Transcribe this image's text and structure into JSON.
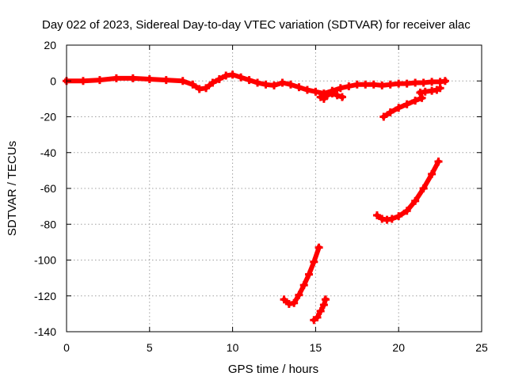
{
  "chart_data": {
    "type": "scatter",
    "title": "Day 022 of 2023, Sidereal Day-to-day VTEC variation (SDTVAR) for receiver alac",
    "xlabel": "GPS time / hours",
    "ylabel": "SDTVAR / TECUs",
    "xlim": [
      0,
      25
    ],
    "ylim": [
      -140,
      20
    ],
    "xticks": [
      0,
      5,
      10,
      15,
      20,
      25
    ],
    "yticks": [
      -140,
      -120,
      -100,
      -80,
      -60,
      -40,
      -20,
      0,
      20
    ],
    "grid": true,
    "marker_color": "#ff0000",
    "segments": [
      {
        "x": [
          0,
          1,
          2,
          3,
          4,
          5,
          6,
          7,
          7.6,
          8.0,
          8.4,
          8.8,
          9.2,
          9.6,
          10.0,
          10.5,
          11.0,
          11.5,
          12.0,
          12.5,
          13.0,
          13.5,
          14.0,
          14.5,
          15.0,
          15.5,
          16.0,
          16.5,
          17.0,
          17.5,
          18.0,
          18.5,
          19.0,
          19.5,
          20.0,
          20.5,
          21.0,
          21.5,
          22.0,
          22.5,
          22.8
        ],
        "y": [
          0,
          0,
          0.5,
          1.5,
          1.5,
          1.0,
          0.5,
          0,
          -2,
          -4.5,
          -4,
          -1,
          1,
          3,
          3.5,
          2,
          0.5,
          -1,
          -2,
          -2.5,
          -1,
          -2,
          -3.5,
          -5,
          -6,
          -7,
          -5.5,
          -4,
          -3,
          -2,
          -2,
          -2,
          -2.5,
          -2,
          -1.5,
          -1.5,
          -1,
          -1,
          -0.5,
          -0.5,
          0
        ]
      },
      {
        "x": [
          15.3,
          15.5,
          15.7,
          16.0,
          16.3,
          16.6
        ],
        "y": [
          -9,
          -10,
          -8,
          -7,
          -8,
          -9
        ]
      },
      {
        "x": [
          21.3,
          21.6,
          22.0,
          22.3,
          22.5
        ],
        "y": [
          -6.5,
          -6,
          -5.5,
          -5,
          -4
        ]
      },
      {
        "x": [
          19.1,
          19.5,
          20.0,
          20.5,
          21.0,
          21.4
        ],
        "y": [
          -20,
          -17.5,
          -15,
          -13,
          -11,
          -9.5
        ]
      },
      {
        "x": [
          18.7,
          19.0,
          19.3,
          19.6,
          20.0,
          20.5,
          21.0,
          21.5,
          22.0,
          22.4
        ],
        "y": [
          -75,
          -77,
          -77.5,
          -77,
          -75.5,
          -72.5,
          -67,
          -60,
          -52,
          -45
        ]
      },
      {
        "x": [
          13.1,
          13.4,
          13.7,
          14.0,
          14.3,
          14.6,
          14.9,
          15.2
        ],
        "y": [
          -122,
          -124.5,
          -124,
          -119.5,
          -114,
          -108,
          -101,
          -93
        ]
      },
      {
        "x": [
          14.9,
          15.1,
          15.3,
          15.5,
          15.6
        ],
        "y": [
          -133.5,
          -132,
          -128.5,
          -125,
          -122
        ]
      }
    ]
  }
}
